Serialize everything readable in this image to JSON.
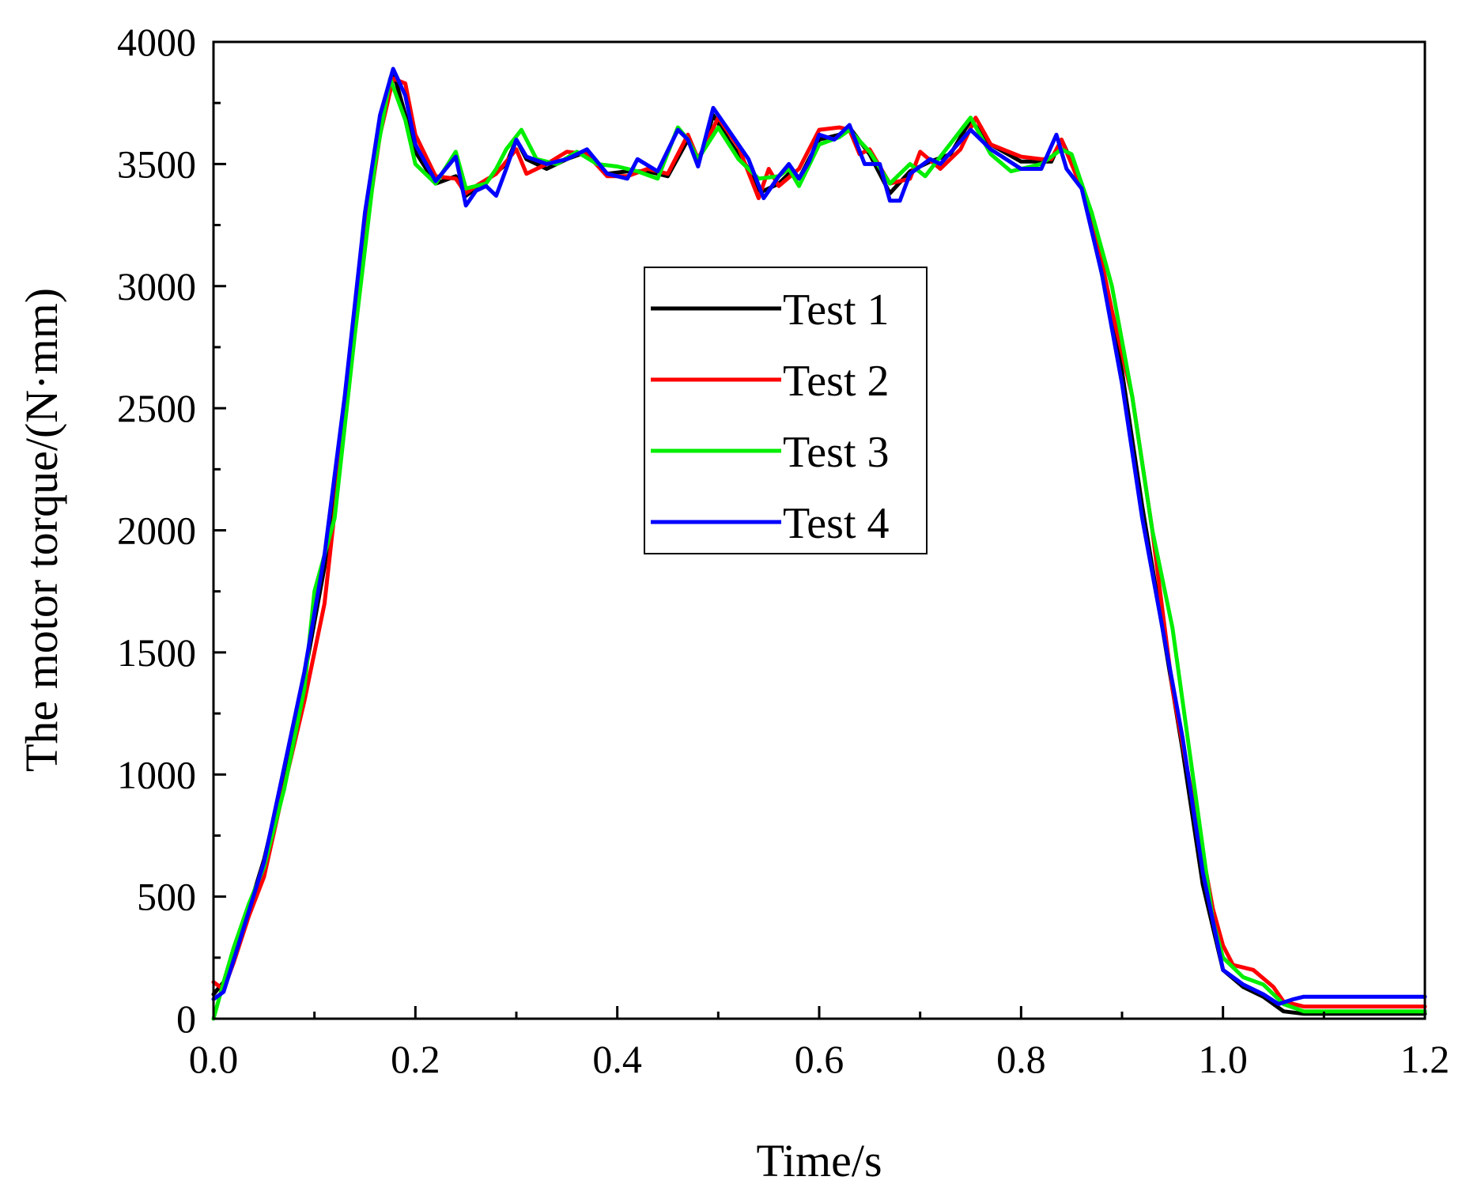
{
  "chart_data": {
    "type": "line",
    "title": "",
    "xlabel": "Time/s",
    "ylabel": "The motor torque/(N·mm)",
    "xlim": [
      0.0,
      1.2
    ],
    "ylim": [
      0,
      4000
    ],
    "xticks": [
      0.0,
      0.2,
      0.4,
      0.6,
      0.8,
      1.0,
      1.2
    ],
    "xtick_labels": [
      "0.0",
      "0.2",
      "0.4",
      "0.6",
      "0.8",
      "1.0",
      "1.2"
    ],
    "yticks": [
      0,
      500,
      1000,
      1500,
      2000,
      2500,
      3000,
      3500,
      4000
    ],
    "ytick_labels": [
      "0",
      "500",
      "1000",
      "1500",
      "2000",
      "2500",
      "3000",
      "3500",
      "4000"
    ],
    "grid": false,
    "legend_position": "center",
    "series": [
      {
        "name": "Test 1",
        "color": "#000000",
        "points": [
          [
            0.0,
            100
          ],
          [
            0.01,
            150
          ],
          [
            0.02,
            260
          ],
          [
            0.035,
            450
          ],
          [
            0.05,
            650
          ],
          [
            0.07,
            1000
          ],
          [
            0.09,
            1400
          ],
          [
            0.11,
            1850
          ],
          [
            0.13,
            2500
          ],
          [
            0.15,
            3250
          ],
          [
            0.165,
            3650
          ],
          [
            0.178,
            3880
          ],
          [
            0.19,
            3700
          ],
          [
            0.2,
            3550
          ],
          [
            0.22,
            3420
          ],
          [
            0.24,
            3450
          ],
          [
            0.25,
            3370
          ],
          [
            0.26,
            3400
          ],
          [
            0.27,
            3430
          ],
          [
            0.29,
            3500
          ],
          [
            0.3,
            3600
          ],
          [
            0.31,
            3520
          ],
          [
            0.33,
            3480
          ],
          [
            0.35,
            3520
          ],
          [
            0.37,
            3550
          ],
          [
            0.39,
            3460
          ],
          [
            0.41,
            3470
          ],
          [
            0.43,
            3470
          ],
          [
            0.45,
            3450
          ],
          [
            0.47,
            3600
          ],
          [
            0.48,
            3500
          ],
          [
            0.495,
            3700
          ],
          [
            0.51,
            3600
          ],
          [
            0.53,
            3480
          ],
          [
            0.54,
            3380
          ],
          [
            0.56,
            3420
          ],
          [
            0.57,
            3460
          ],
          [
            0.58,
            3440
          ],
          [
            0.6,
            3600
          ],
          [
            0.62,
            3620
          ],
          [
            0.63,
            3650
          ],
          [
            0.65,
            3540
          ],
          [
            0.67,
            3380
          ],
          [
            0.69,
            3470
          ],
          [
            0.71,
            3510
          ],
          [
            0.73,
            3540
          ],
          [
            0.75,
            3680
          ],
          [
            0.77,
            3580
          ],
          [
            0.8,
            3510
          ],
          [
            0.83,
            3510
          ],
          [
            0.84,
            3600
          ],
          [
            0.86,
            3420
          ],
          [
            0.88,
            3050
          ],
          [
            0.9,
            2650
          ],
          [
            0.92,
            2100
          ],
          [
            0.94,
            1600
          ],
          [
            0.96,
            1100
          ],
          [
            0.98,
            550
          ],
          [
            1.0,
            200
          ],
          [
            1.02,
            130
          ],
          [
            1.04,
            90
          ],
          [
            1.06,
            30
          ],
          [
            1.08,
            20
          ],
          [
            1.2,
            20
          ]
        ]
      },
      {
        "name": "Test 2",
        "color": "#ff0000",
        "points": [
          [
            0.0,
            150
          ],
          [
            0.01,
            120
          ],
          [
            0.02,
            230
          ],
          [
            0.035,
            420
          ],
          [
            0.05,
            580
          ],
          [
            0.07,
            950
          ],
          [
            0.09,
            1300
          ],
          [
            0.11,
            1700
          ],
          [
            0.13,
            2450
          ],
          [
            0.15,
            3200
          ],
          [
            0.165,
            3620
          ],
          [
            0.178,
            3850
          ],
          [
            0.19,
            3830
          ],
          [
            0.2,
            3620
          ],
          [
            0.22,
            3450
          ],
          [
            0.24,
            3440
          ],
          [
            0.25,
            3380
          ],
          [
            0.26,
            3410
          ],
          [
            0.28,
            3460
          ],
          [
            0.3,
            3560
          ],
          [
            0.31,
            3460
          ],
          [
            0.33,
            3500
          ],
          [
            0.35,
            3550
          ],
          [
            0.37,
            3540
          ],
          [
            0.39,
            3450
          ],
          [
            0.41,
            3450
          ],
          [
            0.43,
            3480
          ],
          [
            0.45,
            3460
          ],
          [
            0.47,
            3620
          ],
          [
            0.48,
            3520
          ],
          [
            0.5,
            3690
          ],
          [
            0.52,
            3570
          ],
          [
            0.54,
            3360
          ],
          [
            0.55,
            3480
          ],
          [
            0.56,
            3410
          ],
          [
            0.58,
            3480
          ],
          [
            0.6,
            3640
          ],
          [
            0.62,
            3650
          ],
          [
            0.63,
            3640
          ],
          [
            0.64,
            3540
          ],
          [
            0.65,
            3560
          ],
          [
            0.67,
            3420
          ],
          [
            0.69,
            3440
          ],
          [
            0.7,
            3550
          ],
          [
            0.72,
            3480
          ],
          [
            0.74,
            3560
          ],
          [
            0.755,
            3690
          ],
          [
            0.77,
            3580
          ],
          [
            0.8,
            3530
          ],
          [
            0.82,
            3520
          ],
          [
            0.83,
            3520
          ],
          [
            0.84,
            3600
          ],
          [
            0.85,
            3500
          ],
          [
            0.87,
            3300
          ],
          [
            0.89,
            2900
          ],
          [
            0.91,
            2550
          ],
          [
            0.93,
            2000
          ],
          [
            0.95,
            1350
          ],
          [
            0.97,
            900
          ],
          [
            0.99,
            450
          ],
          [
            1.0,
            300
          ],
          [
            1.01,
            220
          ],
          [
            1.03,
            200
          ],
          [
            1.05,
            130
          ],
          [
            1.06,
            70
          ],
          [
            1.08,
            50
          ],
          [
            1.2,
            50
          ]
        ]
      },
      {
        "name": "Test 3",
        "color": "#00ee00",
        "points": [
          [
            0.0,
            0
          ],
          [
            0.01,
            150
          ],
          [
            0.02,
            290
          ],
          [
            0.035,
            470
          ],
          [
            0.05,
            620
          ],
          [
            0.07,
            940
          ],
          [
            0.09,
            1350
          ],
          [
            0.1,
            1750
          ],
          [
            0.12,
            2050
          ],
          [
            0.14,
            2800
          ],
          [
            0.16,
            3500
          ],
          [
            0.175,
            3850
          ],
          [
            0.19,
            3680
          ],
          [
            0.2,
            3500
          ],
          [
            0.22,
            3420
          ],
          [
            0.24,
            3550
          ],
          [
            0.25,
            3400
          ],
          [
            0.27,
            3420
          ],
          [
            0.28,
            3480
          ],
          [
            0.29,
            3560
          ],
          [
            0.305,
            3640
          ],
          [
            0.32,
            3520
          ],
          [
            0.34,
            3500
          ],
          [
            0.36,
            3550
          ],
          [
            0.38,
            3500
          ],
          [
            0.4,
            3490
          ],
          [
            0.42,
            3470
          ],
          [
            0.44,
            3440
          ],
          [
            0.46,
            3650
          ],
          [
            0.47,
            3600
          ],
          [
            0.48,
            3520
          ],
          [
            0.5,
            3650
          ],
          [
            0.52,
            3520
          ],
          [
            0.54,
            3440
          ],
          [
            0.56,
            3450
          ],
          [
            0.57,
            3480
          ],
          [
            0.58,
            3410
          ],
          [
            0.6,
            3580
          ],
          [
            0.62,
            3610
          ],
          [
            0.63,
            3640
          ],
          [
            0.65,
            3550
          ],
          [
            0.67,
            3420
          ],
          [
            0.69,
            3500
          ],
          [
            0.705,
            3450
          ],
          [
            0.72,
            3530
          ],
          [
            0.75,
            3690
          ],
          [
            0.77,
            3540
          ],
          [
            0.79,
            3470
          ],
          [
            0.82,
            3500
          ],
          [
            0.84,
            3560
          ],
          [
            0.85,
            3540
          ],
          [
            0.87,
            3300
          ],
          [
            0.89,
            3000
          ],
          [
            0.91,
            2550
          ],
          [
            0.93,
            2000
          ],
          [
            0.95,
            1600
          ],
          [
            0.97,
            1000
          ],
          [
            0.99,
            400
          ],
          [
            1.0,
            250
          ],
          [
            1.02,
            170
          ],
          [
            1.04,
            140
          ],
          [
            1.06,
            60
          ],
          [
            1.08,
            30
          ],
          [
            1.2,
            30
          ]
        ]
      },
      {
        "name": "Test 4",
        "color": "#0000ff",
        "points": [
          [
            0.0,
            80
          ],
          [
            0.01,
            110
          ],
          [
            0.02,
            240
          ],
          [
            0.035,
            440
          ],
          [
            0.05,
            640
          ],
          [
            0.07,
            1030
          ],
          [
            0.09,
            1420
          ],
          [
            0.11,
            1900
          ],
          [
            0.13,
            2550
          ],
          [
            0.15,
            3300
          ],
          [
            0.165,
            3700
          ],
          [
            0.178,
            3890
          ],
          [
            0.19,
            3780
          ],
          [
            0.2,
            3580
          ],
          [
            0.22,
            3430
          ],
          [
            0.24,
            3530
          ],
          [
            0.25,
            3330
          ],
          [
            0.26,
            3390
          ],
          [
            0.27,
            3410
          ],
          [
            0.28,
            3370
          ],
          [
            0.29,
            3480
          ],
          [
            0.3,
            3600
          ],
          [
            0.31,
            3530
          ],
          [
            0.33,
            3500
          ],
          [
            0.35,
            3520
          ],
          [
            0.37,
            3560
          ],
          [
            0.39,
            3460
          ],
          [
            0.41,
            3440
          ],
          [
            0.42,
            3520
          ],
          [
            0.44,
            3470
          ],
          [
            0.46,
            3640
          ],
          [
            0.47,
            3600
          ],
          [
            0.48,
            3490
          ],
          [
            0.495,
            3730
          ],
          [
            0.51,
            3640
          ],
          [
            0.53,
            3520
          ],
          [
            0.545,
            3360
          ],
          [
            0.56,
            3450
          ],
          [
            0.57,
            3500
          ],
          [
            0.58,
            3440
          ],
          [
            0.59,
            3510
          ],
          [
            0.6,
            3620
          ],
          [
            0.615,
            3600
          ],
          [
            0.63,
            3660
          ],
          [
            0.645,
            3500
          ],
          [
            0.66,
            3500
          ],
          [
            0.67,
            3350
          ],
          [
            0.68,
            3350
          ],
          [
            0.69,
            3460
          ],
          [
            0.71,
            3520
          ],
          [
            0.72,
            3500
          ],
          [
            0.75,
            3640
          ],
          [
            0.77,
            3560
          ],
          [
            0.8,
            3480
          ],
          [
            0.82,
            3480
          ],
          [
            0.835,
            3620
          ],
          [
            0.845,
            3480
          ],
          [
            0.86,
            3400
          ],
          [
            0.88,
            3050
          ],
          [
            0.9,
            2600
          ],
          [
            0.92,
            2050
          ],
          [
            0.94,
            1600
          ],
          [
            0.96,
            1150
          ],
          [
            0.98,
            600
          ],
          [
            1.0,
            200
          ],
          [
            1.02,
            140
          ],
          [
            1.04,
            100
          ],
          [
            1.055,
            60
          ],
          [
            1.07,
            80
          ],
          [
            1.08,
            90
          ],
          [
            1.2,
            90
          ]
        ]
      }
    ]
  }
}
